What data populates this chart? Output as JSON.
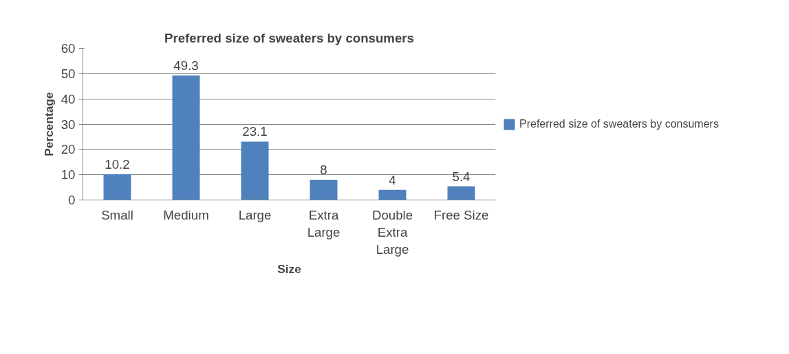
{
  "chart_data": {
    "type": "bar",
    "title": "Preferred size of sweaters by consumers",
    "xlabel": "Size",
    "ylabel": "Percentage",
    "categories": [
      "Small",
      "Medium",
      "Large",
      "Extra Large",
      "Double Extra Large",
      "Free Size"
    ],
    "series": [
      {
        "name": "Preferred size of sweaters by consumers",
        "color": "#4f81bd",
        "values": [
          10.2,
          49.3,
          23.1,
          8,
          4,
          5.4
        ]
      }
    ],
    "ylim": [
      0,
      60
    ],
    "yticks": [
      0,
      10,
      20,
      30,
      40,
      50,
      60
    ],
    "grid": "y",
    "legend": "right",
    "data_labels": true
  }
}
